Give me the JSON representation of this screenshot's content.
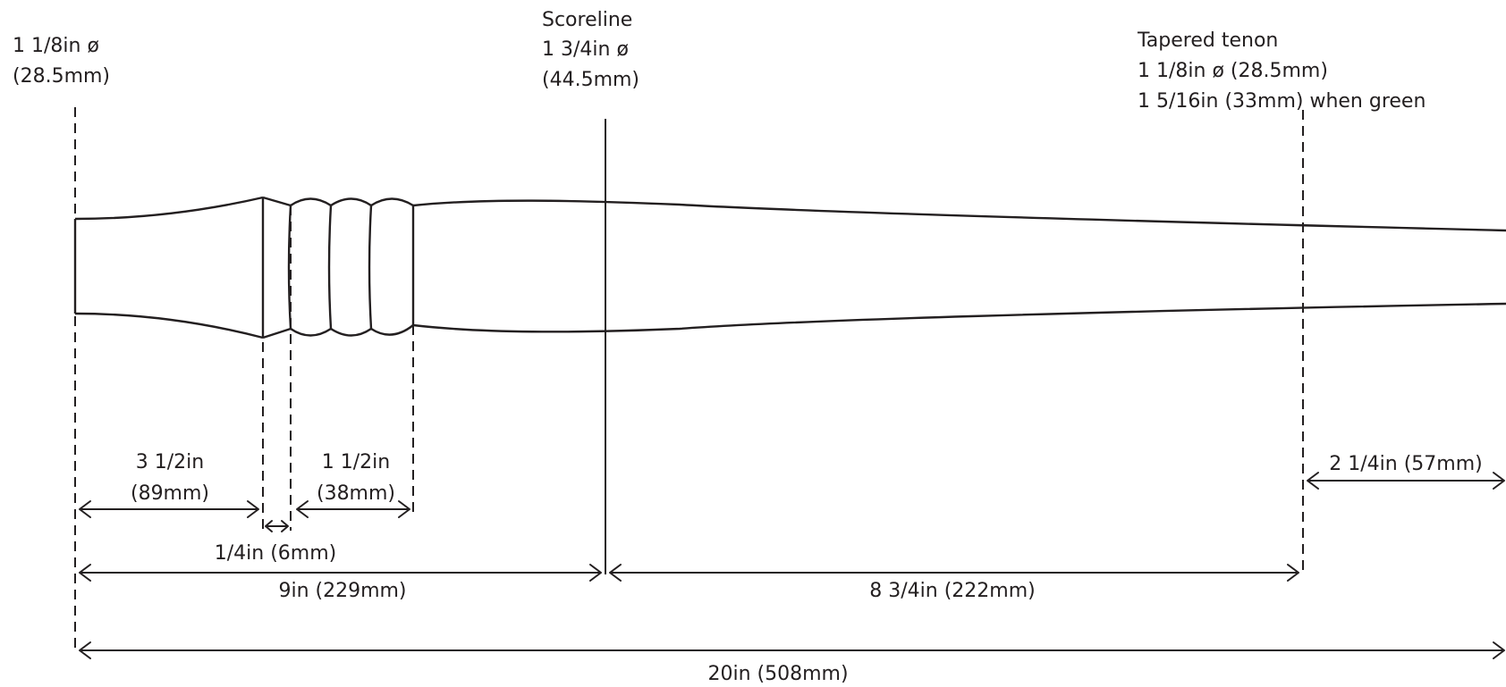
{
  "labels": {
    "left_end": [
      "1 1/8in ø",
      "(28.5mm)"
    ],
    "scoreline": [
      "Scoreline",
      "1 3/4in ø",
      "(44.5mm)"
    ],
    "tenon": [
      "Tapered tenon",
      "1 1/8in ø (28.5mm)",
      "1 5/16in (33mm) when green"
    ]
  },
  "dimensions": {
    "d_3_5": [
      "3 1/2in",
      "(89mm)"
    ],
    "d_1_5": [
      "1 1/2in",
      "(38mm)"
    ],
    "d_quarter": "1/4in (6mm)",
    "d_9": "9in (229mm)",
    "d_8_75": "8 3/4in (222mm)",
    "d_2_25": "2 1/4in (57mm)",
    "d_20": "20in (508mm)"
  },
  "colors": {
    "line": "#231f20",
    "background": "#ffffff"
  }
}
